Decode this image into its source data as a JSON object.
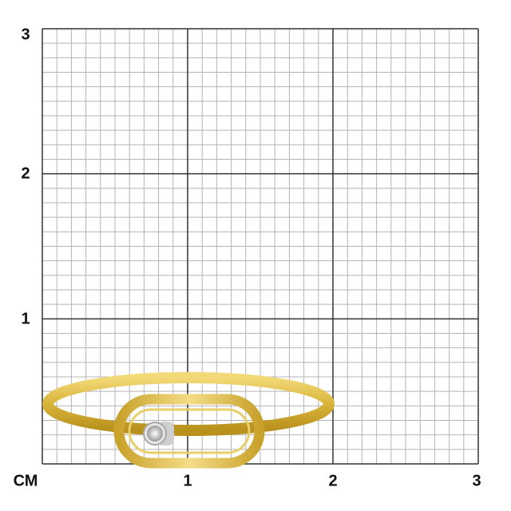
{
  "scale": {
    "unit_label": "СМ",
    "y_labels": [
      "1",
      "2",
      "3"
    ],
    "x_labels": [
      "1",
      "2",
      "3"
    ],
    "minor_divisions_per_unit": 10
  },
  "product": {
    "type": "ring",
    "metal_color": "#d9b43a",
    "stone_setting_color": "#d8d8d8"
  }
}
